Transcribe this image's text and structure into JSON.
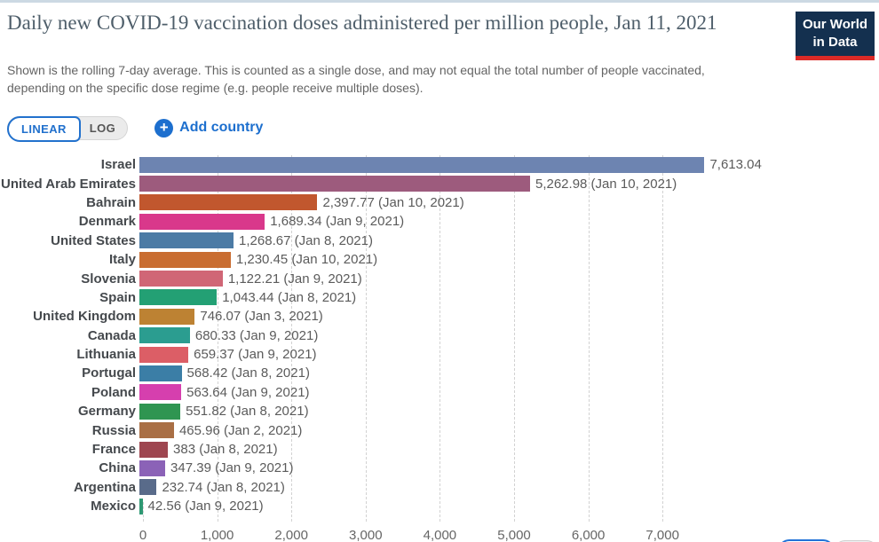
{
  "header": {
    "title": "Daily new COVID-19 vaccination doses administered per million people, Jan 11, 2021",
    "subtitle": "Shown is the rolling 7-day average. This is counted as a single dose, and may not equal the total number of people vaccinated, depending on the specific dose regime (e.g. people receive multiple doses).",
    "logo": {
      "line1": "Our World",
      "line2": "in Data",
      "bg_color": "#14304f",
      "accent_color": "#dc2a27"
    }
  },
  "controls": {
    "scale_toggle": {
      "options": [
        "LINEAR",
        "LOG"
      ],
      "selected": "LINEAR"
    },
    "add_country_label": "Add country",
    "plus_icon": "+",
    "accent_blue": "#1d6fce"
  },
  "chart_data": {
    "type": "bar",
    "orientation": "horizontal",
    "title": "Daily new COVID-19 vaccination doses administered per million people",
    "x_axis": {
      "ticks": [
        0,
        1000,
        2000,
        3000,
        4000,
        5000,
        6000,
        7000
      ],
      "tick_labels": [
        "0",
        "1,000",
        "2,000",
        "3,000",
        "4,000",
        "5,000",
        "6,000",
        "7,000"
      ],
      "range": [
        0,
        7900
      ],
      "gridlines": "dashed"
    },
    "bars": [
      {
        "label": "Israel",
        "value": 7613.04,
        "value_label": "7,613.04",
        "color": "#6d84b1"
      },
      {
        "label": "United Arab Emirates",
        "value": 5262.98,
        "value_label": "5,262.98 (Jan 10, 2021)",
        "color": "#9d5b7d"
      },
      {
        "label": "Bahrain",
        "value": 2397.77,
        "value_label": "2,397.77 (Jan 10, 2021)",
        "color": "#c1572e"
      },
      {
        "label": "Denmark",
        "value": 1689.34,
        "value_label": "1,689.34 (Jan 9, 2021)",
        "color": "#d9388b"
      },
      {
        "label": "United States",
        "value": 1268.67,
        "value_label": "1,268.67 (Jan 8, 2021)",
        "color": "#4c7ba5"
      },
      {
        "label": "Italy",
        "value": 1230.45,
        "value_label": "1,230.45 (Jan 10, 2021)",
        "color": "#c96d31"
      },
      {
        "label": "Slovenia",
        "value": 1122.21,
        "value_label": "1,122.21 (Jan 9, 2021)",
        "color": "#d06676"
      },
      {
        "label": "Spain",
        "value": 1043.44,
        "value_label": "1,043.44 (Jan 8, 2021)",
        "color": "#23a074"
      },
      {
        "label": "United Kingdom",
        "value": 746.07,
        "value_label": "746.07 (Jan 3, 2021)",
        "color": "#bd8233"
      },
      {
        "label": "Canada",
        "value": 680.33,
        "value_label": "680.33 (Jan 9, 2021)",
        "color": "#2b9d90"
      },
      {
        "label": "Lithuania",
        "value": 659.37,
        "value_label": "659.37 (Jan 9, 2021)",
        "color": "#dc5e66"
      },
      {
        "label": "Portugal",
        "value": 568.42,
        "value_label": "568.42 (Jan 8, 2021)",
        "color": "#3b7ea6"
      },
      {
        "label": "Poland",
        "value": 563.64,
        "value_label": "563.64 (Jan 9, 2021)",
        "color": "#d63fae"
      },
      {
        "label": "Germany",
        "value": 551.82,
        "value_label": "551.82 (Jan 8, 2021)",
        "color": "#2f9551"
      },
      {
        "label": "Russia",
        "value": 465.96,
        "value_label": "465.96 (Jan 2, 2021)",
        "color": "#a96f45"
      },
      {
        "label": "France",
        "value": 383,
        "value_label": "383 (Jan 8, 2021)",
        "color": "#9e4650"
      },
      {
        "label": "China",
        "value": 347.39,
        "value_label": "347.39 (Jan 9, 2021)",
        "color": "#8b62b7"
      },
      {
        "label": "Argentina",
        "value": 232.74,
        "value_label": "232.74 (Jan 8, 2021)",
        "color": "#596b8a"
      },
      {
        "label": "Mexico",
        "value": 42.56,
        "value_label": "42.56 (Jan 9, 2021)",
        "color": "#2e9873"
      }
    ]
  }
}
